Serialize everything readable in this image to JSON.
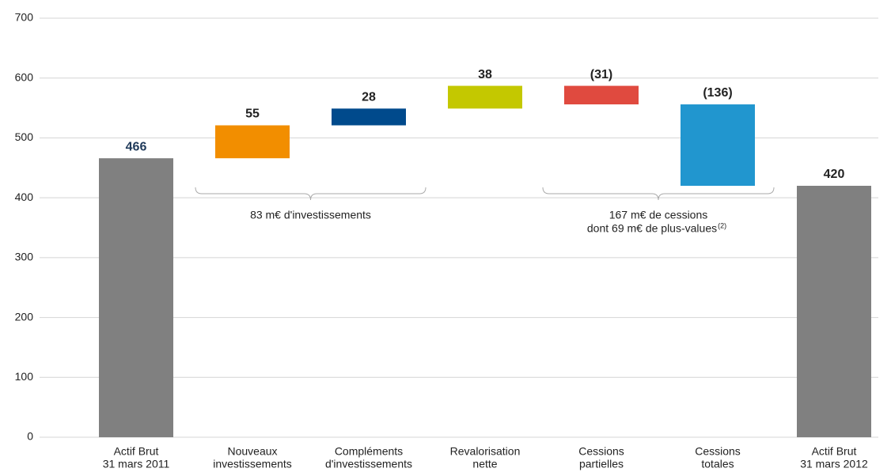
{
  "chart_data": {
    "type": "waterfall",
    "categories": [
      [
        "Actif Brut",
        "31 mars 2011"
      ],
      [
        "Nouveaux",
        "investissements"
      ],
      [
        "Compléments",
        "d'investissements"
      ],
      [
        "Revalorisation",
        "nette"
      ],
      [
        "Cessions",
        "partielles"
      ],
      [
        "Cessions",
        "totales"
      ],
      [
        "Actif Brut",
        "31 mars 2012"
      ]
    ],
    "values": [
      466,
      55,
      28,
      38,
      -31,
      -136,
      420
    ],
    "value_labels": [
      "466",
      "55",
      "28",
      "38",
      "(31)",
      "(136)",
      "420"
    ],
    "colors": [
      "#808080",
      "#f28e00",
      "#004a8c",
      "#c4c800",
      "#e04a3f",
      "#2196cf",
      "#808080"
    ],
    "ylim": [
      0,
      700
    ],
    "yticks": [
      0,
      100,
      200,
      300,
      400,
      500,
      600,
      700
    ],
    "grid": true,
    "annotations": [
      {
        "lines": [
          "83 m€ d'investissements"
        ]
      },
      {
        "lines": [
          "167 m€ de cessions",
          "dont 69 m€ de plus-values"
        ],
        "note": "(2)"
      }
    ]
  }
}
